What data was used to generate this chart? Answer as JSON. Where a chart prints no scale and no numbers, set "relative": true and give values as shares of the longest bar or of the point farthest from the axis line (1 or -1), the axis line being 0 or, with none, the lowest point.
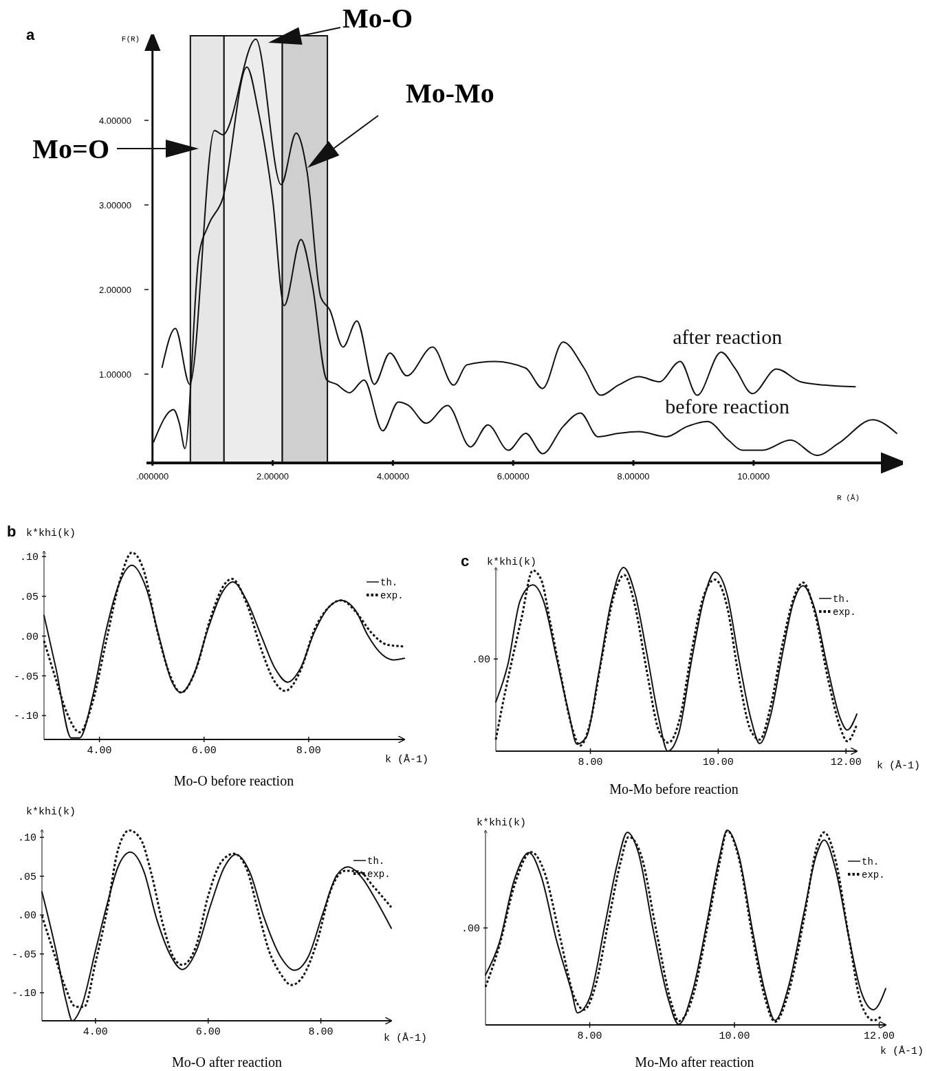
{
  "chart_data": [
    {
      "type": "line",
      "ylabel": "F(R)",
      "xlabel": "R (Å)",
      "xlim": [
        -0.1,
        12.45
      ],
      "ylim": [
        -0.05,
        5.0
      ],
      "xticks": [
        {
          "value": 0,
          "label": ".000000"
        },
        {
          "value": 2,
          "label": "2.00000"
        },
        {
          "value": 4,
          "label": "4.00000"
        },
        {
          "value": 6,
          "label": "6.00000"
        },
        {
          "value": 8,
          "label": "8.00000"
        },
        {
          "value": 10,
          "label": "10.0000"
        }
      ],
      "yticks": [
        {
          "value": 1,
          "label": "1.00000"
        },
        {
          "value": 2,
          "label": "2.00000"
        },
        {
          "value": 3,
          "label": "3.00000"
        },
        {
          "value": 4,
          "label": "4.00000"
        }
      ],
      "grid": false,
      "legend": false,
      "bands": [
        {
          "axis": "x",
          "from": 0.63,
          "to": 1.19,
          "color": "#e6e6e6"
        },
        {
          "axis": "x",
          "from": 1.19,
          "to": 2.16,
          "color": "#ececec"
        },
        {
          "axis": "x",
          "from": 2.16,
          "to": 2.91,
          "color": "#cfcfcf"
        }
      ],
      "annotations": [
        "a",
        "Mo=O",
        "Mo-O",
        "Mo-Mo"
      ],
      "series": [
        {
          "name": "after reaction",
          "color": "#111111",
          "x": [
            0.16,
            0.38,
            0.62,
            1.03,
            1.17,
            1.72,
            2.14,
            2.39,
            2.57,
            2.8,
            2.95,
            3.17,
            3.4,
            3.69,
            3.95,
            4.23,
            4.66,
            5.01,
            5.23,
            5.69,
            6.21,
            6.49,
            6.83,
            7.18,
            7.46,
            7.75,
            8.09,
            8.43,
            8.78,
            9.06,
            9.46,
            9.69,
            9.98,
            10.38,
            10.78,
            11.18,
            11.69
          ],
          "values": [
            1.08,
            1.54,
            0.88,
            3.88,
            3.83,
            4.96,
            3.24,
            3.85,
            3.4,
            1.91,
            1.76,
            1.32,
            1.63,
            0.88,
            1.25,
            0.98,
            1.32,
            0.87,
            1.11,
            1.15,
            1.07,
            0.83,
            1.38,
            1.07,
            0.75,
            0.87,
            0.97,
            0.91,
            1.15,
            0.75,
            1.26,
            1.07,
            0.77,
            1.06,
            0.91,
            0.87,
            0.85
          ]
        },
        {
          "name": "before reaction",
          "color": "#111111",
          "x": [
            0.02,
            0.35,
            0.45,
            0.54,
            0.77,
            0.93,
            1.17,
            1.57,
            1.76,
            2.0,
            2.19,
            2.47,
            2.66,
            2.9,
            3.06,
            3.28,
            3.52,
            3.83,
            4.09,
            4.26,
            4.55,
            4.91,
            5.29,
            5.58,
            5.92,
            6.21,
            6.49,
            6.83,
            7.12,
            7.41,
            7.75,
            8.09,
            8.55,
            8.89,
            9.23,
            9.58,
            9.81,
            10.15,
            10.61,
            11.06,
            11.41,
            11.98,
            12.38
          ],
          "values": [
            0.2,
            0.58,
            0.41,
            0.12,
            2.39,
            2.76,
            3.08,
            4.63,
            4.11,
            3.06,
            1.81,
            2.59,
            2.05,
            0.93,
            0.88,
            0.78,
            0.93,
            0.33,
            0.67,
            0.63,
            0.42,
            0.63,
            0.14,
            0.4,
            0.1,
            0.3,
            0.06,
            0.38,
            0.54,
            0.26,
            0.3,
            0.32,
            0.26,
            0.38,
            0.44,
            0.22,
            0.1,
            0.1,
            0.22,
            0.04,
            0.18,
            0.46,
            0.3
          ]
        }
      ]
    },
    {
      "type": "line",
      "title": "Mo-O before reaction",
      "ylabel": "k*khi(k)",
      "xlabel": "k (Å-1)",
      "xlim": [
        2.94,
        9.83
      ],
      "ylim": [
        -0.13,
        0.107
      ],
      "xticks": [
        {
          "value": 4,
          "label": "4.00"
        },
        {
          "value": 6,
          "label": "6.00"
        },
        {
          "value": 8,
          "label": "8.00"
        }
      ],
      "yticks": [
        {
          "value": 0.1,
          "label": ".10"
        },
        {
          "value": 0.05,
          "label": ".05"
        },
        {
          "value": 0,
          "label": ".00"
        },
        {
          "value": -0.05,
          "label": "-.05"
        },
        {
          "value": -0.1,
          "label": "-.10"
        }
      ],
      "grid": false,
      "legend": "top right",
      "annotations": [
        "b"
      ],
      "series": [
        {
          "name": "th.",
          "color": "#111111",
          "line_style": "solid",
          "x": [
            2.94,
            3.17,
            3.46,
            3.62,
            3.87,
            4.13,
            4.35,
            4.62,
            4.89,
            5.16,
            5.37,
            5.56,
            5.8,
            6.07,
            6.34,
            6.55,
            6.82,
            7.09,
            7.36,
            7.6,
            7.84,
            8.11,
            8.38,
            8.62,
            8.89,
            9.13,
            9.4,
            9.62,
            9.83
          ],
          "values": [
            0.026,
            -0.041,
            -0.128,
            -0.128,
            -0.076,
            0.008,
            0.061,
            0.089,
            0.061,
            -0.006,
            -0.055,
            -0.071,
            -0.049,
            0.008,
            0.054,
            0.068,
            0.044,
            0.001,
            -0.041,
            -0.058,
            -0.041,
            0.005,
            0.036,
            0.045,
            0.033,
            0.001,
            -0.023,
            -0.03,
            -0.028
          ]
        },
        {
          "name": "exp.",
          "color": "#111111",
          "line_style": "dotted",
          "x": [
            2.94,
            3.17,
            3.38,
            3.62,
            3.87,
            4.13,
            4.4,
            4.62,
            4.83,
            5.1,
            5.32,
            5.56,
            5.85,
            6.12,
            6.39,
            6.53,
            6.82,
            7.09,
            7.33,
            7.55,
            7.84,
            8.11,
            8.38,
            8.62,
            8.92,
            9.19,
            9.51,
            9.83
          ],
          "values": [
            -0.006,
            -0.055,
            -0.097,
            -0.121,
            -0.083,
            -0.006,
            0.072,
            0.105,
            0.086,
            0.008,
            -0.044,
            -0.071,
            -0.041,
            0.022,
            0.065,
            0.072,
            0.04,
            -0.016,
            -0.055,
            -0.069,
            -0.044,
            0.008,
            0.036,
            0.045,
            0.029,
            0.005,
            -0.011,
            -0.013
          ]
        }
      ]
    },
    {
      "type": "line",
      "title": "Mo-O after reaction",
      "ylabel": "k*khi(k)",
      "xlabel": "k (Å-1)",
      "xlim": [
        3.05,
        9.25
      ],
      "ylim": [
        -0.136,
        0.11
      ],
      "xticks": [
        {
          "value": 4,
          "label": "4.00"
        },
        {
          "value": 6,
          "label": "6.00"
        },
        {
          "value": 8,
          "label": "8.00"
        }
      ],
      "yticks": [
        {
          "value": 0.1,
          "label": ".10"
        },
        {
          "value": 0.05,
          "label": ".05"
        },
        {
          "value": 0,
          "label": ".00"
        },
        {
          "value": -0.05,
          "label": "-.05"
        },
        {
          "value": -0.1,
          "label": "-.10"
        }
      ],
      "grid": false,
      "legend": "top right",
      "series": [
        {
          "name": "th.",
          "color": "#111111",
          "line_style": "solid",
          "x": [
            3.05,
            3.3,
            3.48,
            3.59,
            3.75,
            4.0,
            4.2,
            4.4,
            4.62,
            4.85,
            5.09,
            5.34,
            5.54,
            5.79,
            6.04,
            6.29,
            6.49,
            6.74,
            6.99,
            7.28,
            7.53,
            7.78,
            8.03,
            8.28,
            8.48,
            8.73,
            8.98,
            9.25
          ],
          "values": [
            0.03,
            -0.046,
            -0.111,
            -0.136,
            -0.118,
            -0.046,
            0.012,
            0.062,
            0.081,
            0.058,
            -0.006,
            -0.053,
            -0.07,
            -0.046,
            0.012,
            0.062,
            0.078,
            0.055,
            -0.003,
            -0.053,
            -0.071,
            -0.053,
            0.001,
            0.051,
            0.062,
            0.048,
            0.019,
            -0.017
          ]
        },
        {
          "name": "exp.",
          "color": "#111111",
          "line_style": "dotted",
          "x": [
            3.05,
            3.25,
            3.45,
            3.65,
            3.8,
            4.0,
            4.2,
            4.4,
            4.6,
            4.8,
            5.0,
            5.19,
            5.39,
            5.54,
            5.79,
            5.99,
            6.24,
            6.46,
            6.69,
            6.89,
            7.08,
            7.28,
            7.48,
            7.68,
            7.93,
            8.18,
            8.43,
            8.68,
            8.93,
            9.25
          ],
          "values": [
            -0.001,
            -0.046,
            -0.09,
            -0.118,
            -0.118,
            -0.061,
            0.004,
            0.084,
            0.109,
            0.098,
            0.051,
            -0.01,
            -0.055,
            -0.064,
            -0.039,
            0.022,
            0.069,
            0.079,
            0.058,
            0.004,
            -0.046,
            -0.075,
            -0.09,
            -0.079,
            -0.035,
            0.033,
            0.057,
            0.056,
            0.037,
            0.01
          ]
        }
      ]
    },
    {
      "type": "line",
      "title": "Mo-Mo before reaction",
      "ylabel": "k*khi(k)",
      "xlabel": "k (Å-1)",
      "relative": true,
      "xlim": [
        6.52,
        12.17
      ],
      "xticks": [
        {
          "value": 8,
          "label": "8.00"
        },
        {
          "value": 10,
          "label": "10.00"
        },
        {
          "value": 12,
          "label": "12.00"
        }
      ],
      "grid": false,
      "legend": "top right",
      "annotations": [
        "c",
        ".00"
      ],
      "series": [
        {
          "name": "th.",
          "color": "#111111",
          "line_style": "solid",
          "x": [
            6.52,
            6.71,
            6.9,
            7.1,
            7.28,
            7.47,
            7.66,
            7.79,
            7.94,
            8.13,
            8.32,
            8.52,
            8.69,
            8.88,
            9.07,
            9.21,
            9.38,
            9.59,
            9.78,
            9.95,
            10.14,
            10.32,
            10.51,
            10.65,
            10.82,
            11.01,
            11.17,
            11.33,
            11.5,
            11.72,
            11.91,
            12.02,
            12.17
          ],
          "values": [
            0.268,
            0.474,
            0.819,
            0.905,
            0.803,
            0.507,
            0.211,
            0.038,
            0.079,
            0.424,
            0.803,
            1.0,
            0.868,
            0.539,
            0.178,
            0.0,
            0.095,
            0.507,
            0.836,
            0.975,
            0.852,
            0.507,
            0.178,
            0.041,
            0.194,
            0.539,
            0.803,
            0.901,
            0.786,
            0.441,
            0.178,
            0.115,
            0.202
          ]
        },
        {
          "name": "exp.",
          "color": "#111111",
          "line_style": "dotted",
          "x": [
            6.52,
            6.62,
            6.76,
            6.92,
            7.1,
            7.23,
            7.37,
            7.54,
            7.7,
            7.84,
            7.99,
            8.17,
            8.36,
            8.53,
            8.69,
            8.88,
            9.07,
            9.22,
            9.4,
            9.59,
            9.78,
            9.95,
            10.14,
            10.32,
            10.51,
            10.65,
            10.82,
            11.01,
            11.2,
            11.33,
            11.5,
            11.72,
            11.91,
            12.02,
            12.17
          ],
          "values": [
            0.063,
            0.243,
            0.474,
            0.72,
            0.984,
            0.934,
            0.704,
            0.408,
            0.145,
            0.03,
            0.145,
            0.49,
            0.836,
            0.959,
            0.803,
            0.441,
            0.112,
            0.046,
            0.178,
            0.556,
            0.852,
            0.934,
            0.786,
            0.408,
            0.112,
            0.063,
            0.243,
            0.589,
            0.852,
            0.918,
            0.77,
            0.391,
            0.128,
            0.054,
            0.145
          ]
        }
      ]
    },
    {
      "type": "line",
      "title": "Mo-Mo after reaction",
      "ylabel": "k*khi(k)",
      "xlabel": "k (Å-1)",
      "relative": true,
      "xlim": [
        6.56,
        12.09
      ],
      "xticks": [
        {
          "value": 8,
          "label": "8.00"
        },
        {
          "value": 10,
          "label": "10.00"
        },
        {
          "value": 12,
          "label": "12.00"
        }
      ],
      "grid": false,
      "legend": "top right",
      "annotations": [
        ".00"
      ],
      "series": [
        {
          "name": "th.",
          "color": "#111111",
          "line_style": "solid",
          "x": [
            6.56,
            6.75,
            6.96,
            7.16,
            7.33,
            7.54,
            7.75,
            7.83,
            8.0,
            8.21,
            8.38,
            8.52,
            8.67,
            8.88,
            9.08,
            9.23,
            9.42,
            9.63,
            9.79,
            9.9,
            10.06,
            10.25,
            10.42,
            10.56,
            10.75,
            10.96,
            11.13,
            11.24,
            11.4,
            11.58,
            11.75,
            11.92,
            12.09
          ],
          "values": [
            0.257,
            0.421,
            0.748,
            0.885,
            0.763,
            0.436,
            0.171,
            0.062,
            0.14,
            0.514,
            0.826,
            0.989,
            0.888,
            0.483,
            0.14,
            0.003,
            0.171,
            0.545,
            0.857,
            1.0,
            0.872,
            0.483,
            0.171,
            0.023,
            0.202,
            0.576,
            0.872,
            0.95,
            0.794,
            0.452,
            0.171,
            0.078,
            0.187
          ]
        },
        {
          "name": "exp.",
          "color": "#111111",
          "line_style": "dotted",
          "x": [
            6.56,
            6.75,
            6.96,
            7.19,
            7.38,
            7.58,
            7.79,
            7.92,
            8.08,
            8.25,
            8.42,
            8.54,
            8.71,
            8.92,
            9.13,
            9.23,
            9.42,
            9.63,
            9.79,
            9.9,
            10.06,
            10.25,
            10.42,
            10.56,
            10.75,
            10.96,
            11.13,
            11.24,
            11.4,
            11.58,
            11.75,
            11.92,
            12.04
          ],
          "values": [
            0.195,
            0.405,
            0.717,
            0.888,
            0.779,
            0.467,
            0.14,
            0.078,
            0.202,
            0.514,
            0.826,
            0.966,
            0.872,
            0.483,
            0.109,
            0.019,
            0.14,
            0.514,
            0.826,
            0.997,
            0.857,
            0.452,
            0.14,
            0.016,
            0.171,
            0.545,
            0.903,
            0.989,
            0.841,
            0.452,
            0.109,
            0.023,
            0.047
          ]
        }
      ]
    }
  ]
}
